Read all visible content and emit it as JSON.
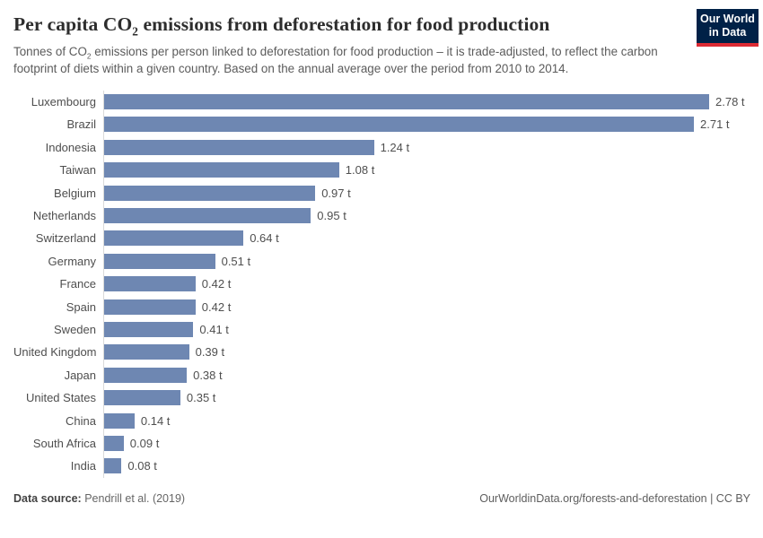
{
  "header": {
    "title": {
      "pre": "Per capita CO",
      "sub": "2",
      "post": " emissions from deforestation for food production"
    },
    "subtitle": {
      "pre": "Tonnes of CO",
      "sub": "2",
      "post": " emissions per person linked to deforestation for food production – it is trade-adjusted, to reflect the carbon footprint of diets within a given country. Based on the annual average over the period from 2010 to 2014."
    },
    "logo": {
      "line1": "Our World",
      "line2": "in Data"
    }
  },
  "chart_data": {
    "type": "bar",
    "orientation": "horizontal",
    "title": "Per capita CO₂ emissions from deforestation for food production",
    "unit": "t",
    "xlim": [
      0,
      2.78
    ],
    "grid": false,
    "legend": false,
    "categories": [
      "Luxembourg",
      "Brazil",
      "Indonesia",
      "Taiwan",
      "Belgium",
      "Netherlands",
      "Switzerland",
      "Germany",
      "France",
      "Spain",
      "Sweden",
      "United Kingdom",
      "Japan",
      "United States",
      "China",
      "South Africa",
      "India"
    ],
    "values": [
      2.78,
      2.71,
      1.24,
      1.08,
      0.97,
      0.95,
      0.64,
      0.51,
      0.42,
      0.42,
      0.41,
      0.39,
      0.38,
      0.35,
      0.14,
      0.09,
      0.08
    ],
    "value_labels": [
      "2.78 t",
      "2.71 t",
      "1.24 t",
      "1.08 t",
      "0.97 t",
      "0.95 t",
      "0.64 t",
      "0.51 t",
      "0.42 t",
      "0.42 t",
      "0.41 t",
      "0.39 t",
      "0.38 t",
      "0.35 t",
      "0.14 t",
      "0.09 t",
      "0.08 t"
    ]
  },
  "footer": {
    "datasource_label": "Data source:",
    "datasource_text": " Pendrill et al. (2019)",
    "link": "OurWorldinData.org/forests-and-deforestation | CC BY"
  },
  "colors": {
    "bar": "#6e87b2",
    "axis_line": "#dadada",
    "logo_bg": "#002147",
    "logo_stripe": "#dc2a33",
    "title_text": "#2d2d2d",
    "subtitle_text": "#5b5b5b",
    "label_text": "#4e4e4e"
  }
}
